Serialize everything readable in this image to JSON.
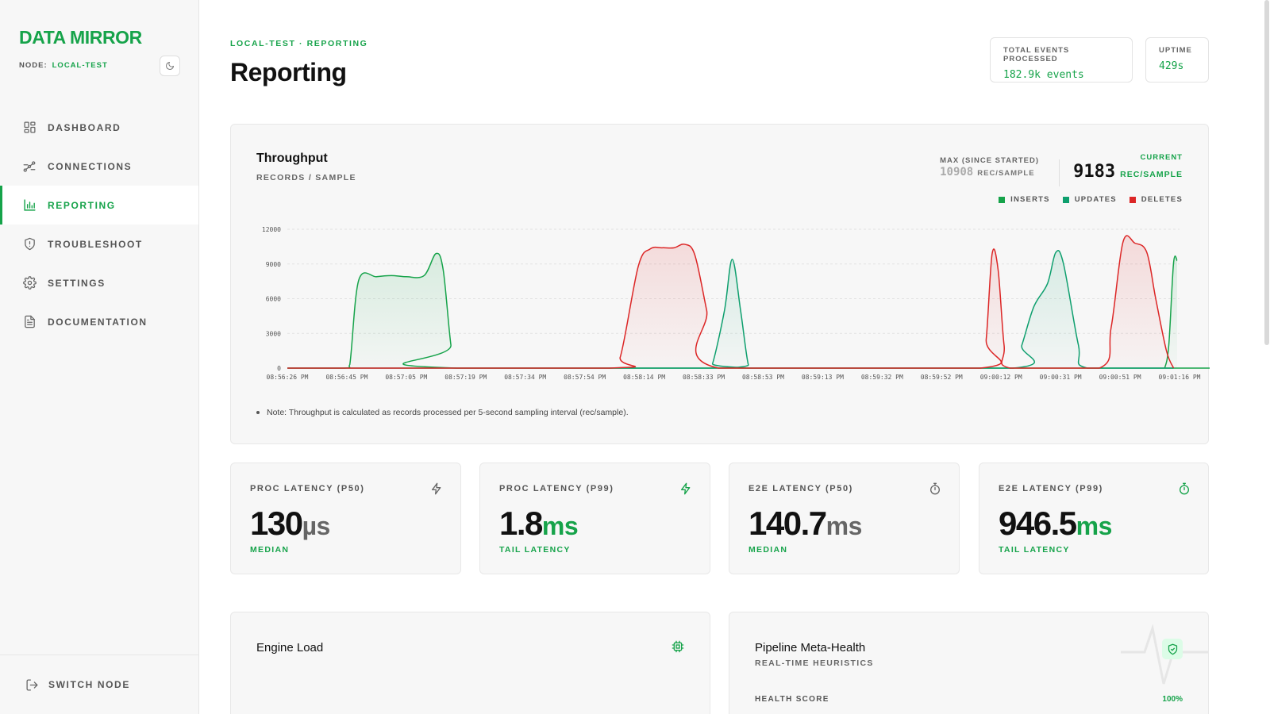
{
  "app": {
    "brand": "DATA MIRROR",
    "node_label": "NODE:",
    "node_value": "LOCAL-TEST"
  },
  "sidebar": {
    "items": [
      {
        "label": "DASHBOARD",
        "icon": "dashboard-icon",
        "active": false
      },
      {
        "label": "CONNECTIONS",
        "icon": "connections-icon",
        "active": false
      },
      {
        "label": "REPORTING",
        "icon": "bar-chart-icon",
        "active": true
      },
      {
        "label": "TROUBLESHOOT",
        "icon": "shield-alert-icon",
        "active": false
      },
      {
        "label": "SETTINGS",
        "icon": "gear-icon",
        "active": false
      },
      {
        "label": "DOCUMENTATION",
        "icon": "document-icon",
        "active": false
      }
    ],
    "footer_label": "SWITCH NODE"
  },
  "header": {
    "breadcrumb": "LOCAL-TEST · REPORTING",
    "title": "Reporting",
    "stats": [
      {
        "label": "TOTAL EVENTS PROCESSED",
        "value": "182.9k events"
      },
      {
        "label": "UPTIME",
        "value": "429s"
      }
    ]
  },
  "throughput": {
    "title": "Throughput",
    "subtitle": "RECORDS / SAMPLE",
    "max_label": "MAX (SINCE STARTED)",
    "max_value": "10908",
    "max_unit": "REC/SAMPLE",
    "current_label": "CURRENT",
    "current_value": "9183",
    "current_unit": "REC/SAMPLE",
    "note": "Note: Throughput is calculated as records processed per 5-second sampling interval (rec/sample)."
  },
  "chart_data": {
    "type": "area",
    "title": "Throughput",
    "ylabel": "",
    "xlabel": "",
    "ylim": [
      0,
      12000
    ],
    "yticks": [
      0,
      3000,
      6000,
      9000,
      12000
    ],
    "grid": true,
    "legend_position": "top-right",
    "xticks": [
      "08:56:26 PM",
      "08:56:45 PM",
      "08:57:05 PM",
      "08:57:19 PM",
      "08:57:34 PM",
      "08:57:54 PM",
      "08:58:14 PM",
      "08:58:33 PM",
      "08:58:53 PM",
      "08:59:13 PM",
      "08:59:32 PM",
      "08:59:52 PM",
      "09:00:12 PM",
      "09:00:31 PM",
      "09:00:51 PM",
      "09:01:16 PM"
    ],
    "series": [
      {
        "name": "INSERTS",
        "color": "#16a34a",
        "points": [
          [
            0,
            0
          ],
          [
            0.95,
            0
          ],
          [
            1.05,
            300
          ],
          [
            1.2,
            7600
          ],
          [
            1.5,
            7900
          ],
          [
            1.75,
            8000
          ],
          [
            2.0,
            7900
          ],
          [
            2.3,
            8000
          ],
          [
            2.5,
            9900
          ],
          [
            2.62,
            8500
          ],
          [
            2.75,
            2000
          ],
          [
            2.85,
            0
          ],
          [
            14.7,
            0
          ],
          [
            14.75,
            0
          ],
          [
            14.82,
            2000
          ],
          [
            14.9,
            9100
          ],
          [
            14.96,
            9300
          ]
        ]
      },
      {
        "name": "UPDATES",
        "color": "#0e9f6e",
        "points": [
          [
            0,
            0
          ],
          [
            7.05,
            0
          ],
          [
            7.15,
            400
          ],
          [
            7.35,
            5000
          ],
          [
            7.48,
            9400
          ],
          [
            7.62,
            5000
          ],
          [
            7.75,
            300
          ],
          [
            7.85,
            0
          ],
          [
            12.2,
            0
          ],
          [
            12.35,
            2000
          ],
          [
            12.55,
            5300
          ],
          [
            12.78,
            7300
          ],
          [
            12.92,
            10000
          ],
          [
            13.05,
            9000
          ],
          [
            13.3,
            2000
          ],
          [
            13.45,
            0
          ],
          [
            14.9,
            0
          ]
        ]
      },
      {
        "name": "DELETES",
        "color": "#dc2626",
        "points": [
          [
            0,
            0
          ],
          [
            5.4,
            0
          ],
          [
            5.6,
            1000
          ],
          [
            5.9,
            8800
          ],
          [
            6.1,
            10300
          ],
          [
            6.3,
            10400
          ],
          [
            6.5,
            10400
          ],
          [
            6.68,
            10700
          ],
          [
            6.85,
            9800
          ],
          [
            7.05,
            5000
          ],
          [
            7.25,
            0
          ],
          [
            11.65,
            0
          ],
          [
            11.75,
            2500
          ],
          [
            11.85,
            9900
          ],
          [
            11.95,
            8500
          ],
          [
            12.05,
            2000
          ],
          [
            12.15,
            0
          ],
          [
            13.65,
            0
          ],
          [
            13.85,
            3500
          ],
          [
            14.05,
            10900
          ],
          [
            14.25,
            10800
          ],
          [
            14.45,
            10000
          ],
          [
            14.6,
            6000
          ],
          [
            14.78,
            1500
          ],
          [
            14.9,
            0
          ]
        ]
      }
    ]
  },
  "latency_cards": [
    {
      "label": "PROC LATENCY (P50)",
      "value": "130",
      "unit": "µs",
      "unit_style": "gray",
      "sub": "MEDIAN",
      "icon": "lightning-icon",
      "icon_color": "#666666"
    },
    {
      "label": "PROC LATENCY (P99)",
      "value": "1.8",
      "unit": "ms",
      "unit_style": "green",
      "sub": "TAIL LATENCY",
      "icon": "lightning-icon",
      "icon_color": "#16a34a"
    },
    {
      "label": "E2E LATENCY (P50)",
      "value": "140.7",
      "unit": "ms",
      "unit_style": "gray",
      "sub": "MEDIAN",
      "icon": "stopwatch-icon",
      "icon_color": "#666666"
    },
    {
      "label": "E2E LATENCY (P99)",
      "value": "946.5",
      "unit": "ms",
      "unit_style": "green",
      "sub": "TAIL LATENCY",
      "icon": "stopwatch-icon",
      "icon_color": "#16a34a"
    }
  ],
  "engine_load": {
    "title": "Engine Load",
    "icon": "cpu-icon"
  },
  "meta_health": {
    "title": "Pipeline Meta-Health",
    "subtitle": "REAL-TIME HEURISTICS",
    "score_label": "HEALTH SCORE",
    "score_value": "100%",
    "icon": "shield-check-icon"
  },
  "colors": {
    "accent": "#16a34a",
    "updates": "#0e9f6e",
    "deletes": "#dc2626"
  }
}
